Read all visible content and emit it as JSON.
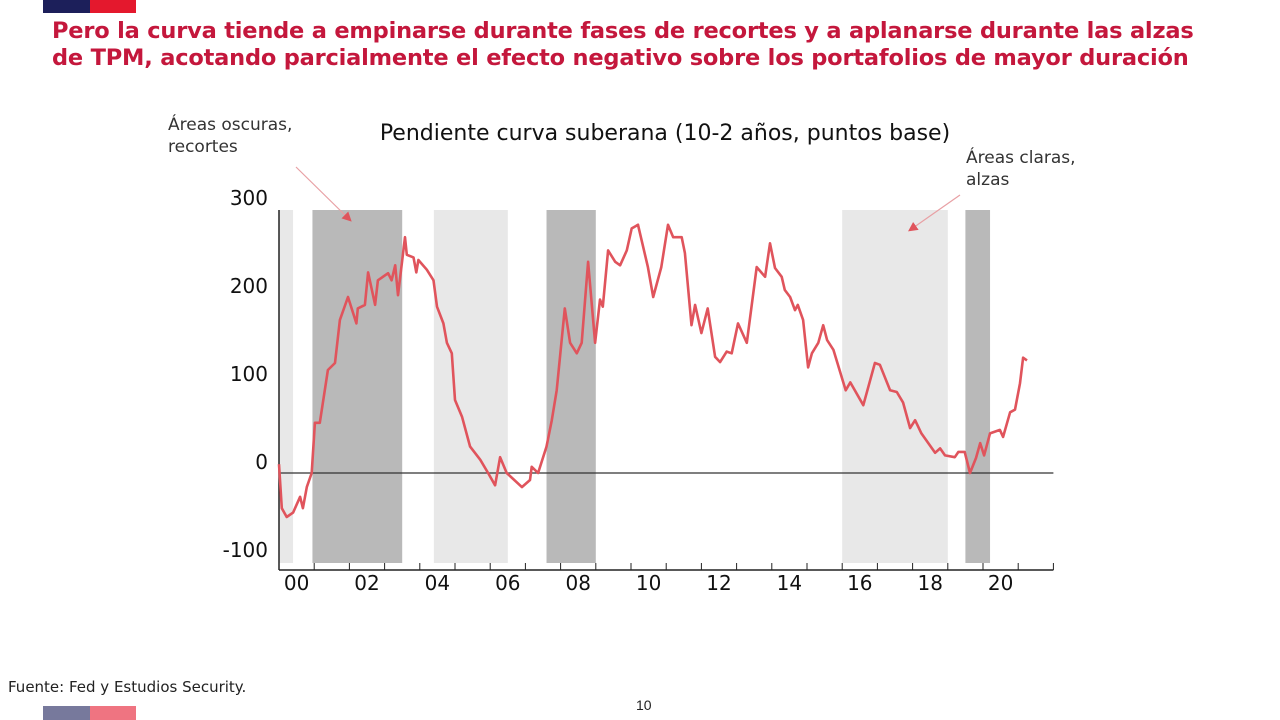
{
  "brand_colors": {
    "navy": "#1c1f5a",
    "red": "#e4182d"
  },
  "headline": {
    "line1": "Pero la curva tiende a empinarse durante fases de recortes y a aplanarse durante las alzas",
    "line2": "de TPM, acotando parcialmente el efecto negativo sobre los portafolios de mayor duración",
    "color": "#c4173c"
  },
  "annotations": {
    "dark": {
      "line1": "Áreas oscuras,",
      "line2": "recortes"
    },
    "light": {
      "line1": "Áreas claras,",
      "line2": "alzas"
    }
  },
  "source": "Fuente: Fed y Estudios Security.",
  "page_number": "10",
  "chart_data": {
    "type": "line",
    "title": "Pendiente curva suberana (10-2 años, puntos base)",
    "xlabel": "",
    "ylabel": "",
    "xlim": [
      2000,
      2022
    ],
    "ylim": [
      -100,
      300
    ],
    "yticks": [
      300,
      200,
      100,
      0,
      -100
    ],
    "xticks": [
      {
        "value": 2000,
        "label": "00"
      },
      {
        "value": 2002,
        "label": "02"
      },
      {
        "value": 2004,
        "label": "04"
      },
      {
        "value": 2006,
        "label": "06"
      },
      {
        "value": 2008,
        "label": "08"
      },
      {
        "value": 2010,
        "label": "10"
      },
      {
        "value": 2012,
        "label": "12"
      },
      {
        "value": 2014,
        "label": "14"
      },
      {
        "value": 2016,
        "label": "16"
      },
      {
        "value": 2018,
        "label": "18"
      },
      {
        "value": 2020,
        "label": "20"
      }
    ],
    "line_color": "#e0545c",
    "shaded_periods": [
      {
        "kind": "alzas",
        "from": 2000.0,
        "to": 2000.4,
        "color": "#e8e8e8"
      },
      {
        "kind": "recortes",
        "from": 2000.95,
        "to": 2003.5,
        "color": "#b9b9b9"
      },
      {
        "kind": "alzas",
        "from": 2004.4,
        "to": 2006.5,
        "color": "#e8e8e8"
      },
      {
        "kind": "recortes",
        "from": 2007.6,
        "to": 2009.0,
        "color": "#b9b9b9"
      },
      {
        "kind": "alzas",
        "from": 2016.0,
        "to": 2019.0,
        "color": "#e8e8e8"
      },
      {
        "kind": "recortes",
        "from": 2019.5,
        "to": 2020.2,
        "color": "#b9b9b9"
      }
    ],
    "series": [
      {
        "x": [
          2000.0,
          2000.08,
          2000.22,
          2000.4,
          2000.6,
          2000.68,
          2000.79,
          2000.93,
          2001.02,
          2001.16,
          2001.39,
          2001.59,
          2001.73,
          2001.96,
          2002.2,
          2002.24,
          2002.44,
          2002.53,
          2002.73,
          2002.81,
          2003.1,
          2003.2,
          2003.3,
          2003.38,
          2003.58,
          2003.63,
          2003.82,
          2003.9,
          2003.96,
          2004.2,
          2004.39,
          2004.49,
          2004.67,
          2004.77,
          2004.91,
          2005.0,
          2005.2,
          2005.43,
          2005.72,
          2005.94,
          2006.14,
          2006.28,
          2006.47,
          2006.9,
          2007.13,
          2007.18,
          2007.36,
          2007.6,
          2007.75,
          2007.89,
          2008.12,
          2008.27,
          2008.46,
          2008.6,
          2008.78,
          2008.98,
          2009.12,
          2009.2,
          2009.35,
          2009.55,
          2009.69,
          2009.88,
          2010.02,
          2010.2,
          2010.48,
          2010.63,
          2010.86,
          2011.05,
          2011.2,
          2011.44,
          2011.53,
          2011.72,
          2011.82,
          2012.0,
          2012.18,
          2012.39,
          2012.53,
          2012.72,
          2012.86,
          2013.04,
          2013.29,
          2013.57,
          2013.81,
          2013.95,
          2014.09,
          2014.28,
          2014.37,
          2014.52,
          2014.66,
          2014.74,
          2014.89,
          2015.03,
          2015.14,
          2015.32,
          2015.46,
          2015.57,
          2015.75,
          2016.1,
          2016.23,
          2016.6,
          2016.93,
          2017.07,
          2017.36,
          2017.55,
          2017.73,
          2017.93,
          2018.07,
          2018.25,
          2018.64,
          2018.78,
          2018.92,
          2019.2,
          2019.3,
          2019.48,
          2019.63,
          2019.8,
          2019.92,
          2020.03,
          2020.2,
          2020.48,
          2020.57,
          2020.77,
          2020.91,
          2021.05,
          2021.14,
          2021.25
        ],
        "y": [
          10,
          -40,
          -50,
          -45,
          -27,
          -40,
          -16,
          0,
          57,
          57,
          117,
          125,
          174,
          200,
          170,
          187,
          191,
          228,
          191,
          219,
          227,
          219,
          236,
          202,
          268,
          248,
          245,
          228,
          242,
          231,
          219,
          189,
          170,
          148,
          136,
          83,
          64,
          30,
          15,
          0,
          -14,
          18,
          0,
          -16,
          -8,
          7,
          0,
          30,
          60,
          94,
          187,
          148,
          136,
          148,
          240,
          148,
          197,
          189,
          253,
          240,
          236,
          253,
          278,
          282,
          234,
          200,
          234,
          282,
          268,
          268,
          250,
          168,
          191,
          159,
          187,
          132,
          126,
          138,
          136,
          170,
          148,
          234,
          223,
          261,
          233,
          223,
          208,
          200,
          185,
          191,
          174,
          120,
          136,
          148,
          168,
          151,
          140,
          94,
          103,
          77,
          125,
          123,
          94,
          92,
          80,
          51,
          60,
          45,
          23,
          28,
          20,
          18,
          24,
          24,
          0,
          17,
          34,
          20,
          45,
          49,
          41,
          69,
          72,
          102,
          131,
          128
        ]
      }
    ]
  }
}
